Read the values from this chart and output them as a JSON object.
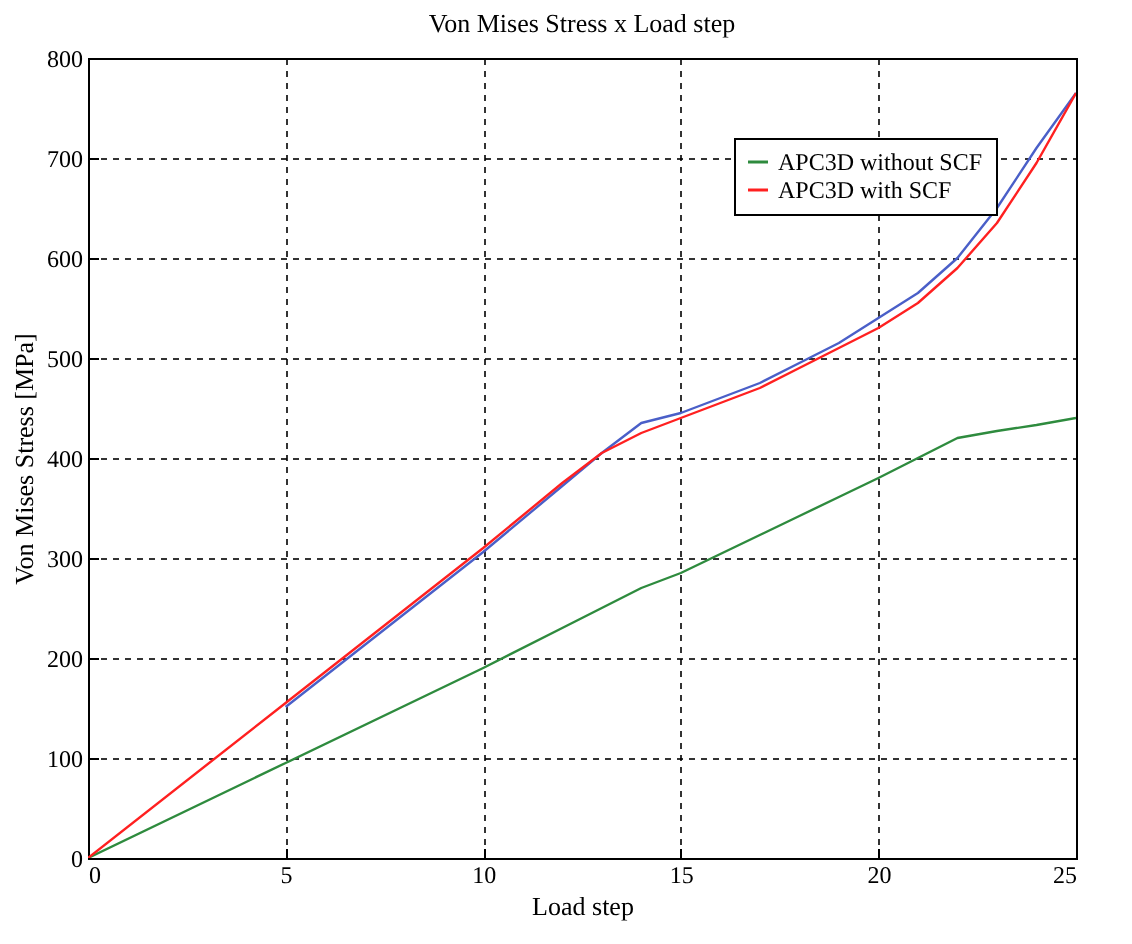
{
  "chart_data": {
    "type": "line",
    "title": "Von Mises Stress x Load step",
    "xlabel": "Load step",
    "ylabel": "Von Mises Stress [MPa]",
    "x": [
      0,
      5,
      10,
      12,
      13,
      14,
      15,
      16,
      17,
      18,
      19,
      20,
      21,
      22,
      23,
      24,
      25
    ],
    "series": [
      {
        "color": "#4a5fc8",
        "values": [
          null,
          151,
          306,
          372,
          405,
          435,
          445,
          460,
          475,
          495,
          515,
          540,
          565,
          600,
          650,
          710,
          765
        ]
      },
      {
        "name": "APC3D without SCF",
        "color": "#2e8b3e",
        "values": [
          0,
          95,
          190,
          230,
          250,
          270,
          285,
          304,
          323,
          342,
          361,
          380,
          400,
          420,
          427,
          433,
          440
        ]
      },
      {
        "name": "APC3D with SCF",
        "color": "#ff2020",
        "values": [
          0,
          155,
          310,
          375,
          405,
          425,
          440,
          455,
          470,
          490,
          510,
          530,
          555,
          590,
          635,
          695,
          765
        ]
      }
    ],
    "xlim": [
      0,
      25
    ],
    "xticks": [
      0,
      5,
      10,
      15,
      20,
      25
    ],
    "ylim": [
      0,
      800
    ],
    "yticks": [
      0,
      100,
      200,
      300,
      400,
      500,
      600,
      700,
      800
    ],
    "grid": true,
    "legend": "top right"
  }
}
